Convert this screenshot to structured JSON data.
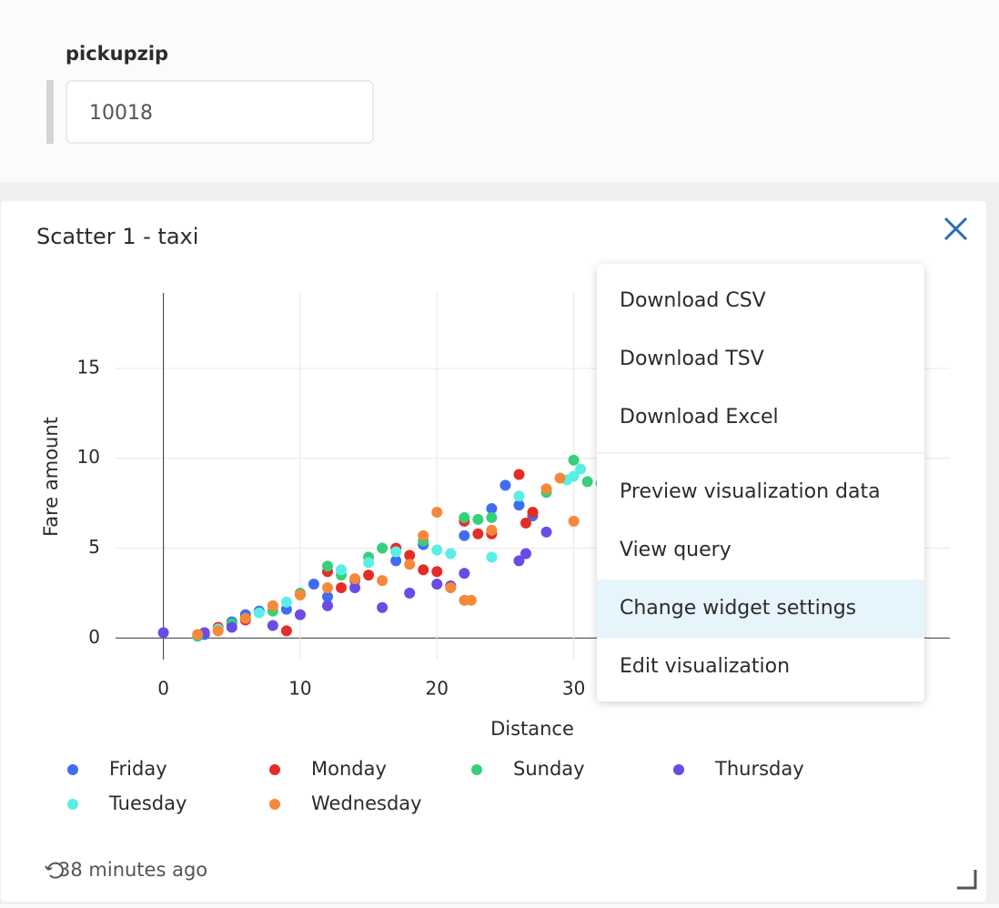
{
  "filter": {
    "label": "pickupzip",
    "value": "10018"
  },
  "widget": {
    "title": "Scatter 1 - taxi",
    "footer": "38 minutes ago"
  },
  "menu": {
    "items": [
      "Download CSV",
      "Download TSV",
      "Download Excel",
      "Preview visualization data",
      "View query",
      "Change widget settings",
      "Edit visualization"
    ],
    "highlighted_index": 5
  },
  "chart_data": {
    "type": "scatter",
    "x_label": "Distance",
    "y_label": "Fare amount",
    "xlim": [
      -3.5,
      57.5
    ],
    "ylim": [
      -1.2,
      19.2
    ],
    "xticks": [
      0,
      10,
      20,
      30
    ],
    "yticks": [
      0,
      5,
      10,
      15
    ],
    "grid": true,
    "series": [
      {
        "name": "Friday",
        "color": "#3f6df2",
        "x": [
          3,
          5,
          6,
          7,
          9,
          11,
          12,
          14,
          17,
          19,
          22,
          24,
          25,
          26,
          27
        ],
        "values": [
          0.2,
          0.9,
          1.3,
          1.5,
          1.6,
          3.0,
          2.3,
          3.2,
          4.3,
          5.2,
          5.7,
          7.2,
          8.5,
          7.4,
          6.8
        ]
      },
      {
        "name": "Monday",
        "color": "#e52d27",
        "x": [
          4,
          6,
          9,
          12,
          13,
          15,
          17,
          18,
          19,
          20,
          22,
          23,
          24,
          26,
          27,
          26.5
        ],
        "values": [
          0.6,
          1.0,
          0.4,
          3.7,
          2.8,
          3.5,
          5.0,
          4.6,
          3.8,
          3.7,
          6.5,
          5.8,
          5.8,
          9.1,
          7.0,
          6.4
        ]
      },
      {
        "name": "Sunday",
        "color": "#36d07a",
        "x": [
          2.5,
          5,
          8,
          10,
          12,
          13,
          15,
          16,
          19,
          22,
          23,
          24,
          28,
          30,
          31,
          32
        ],
        "values": [
          0.1,
          0.8,
          1.5,
          2.5,
          4.0,
          3.5,
          4.5,
          5.0,
          5.4,
          6.7,
          6.6,
          6.7,
          8.1,
          9.9,
          8.7,
          8.6
        ]
      },
      {
        "name": "Thursday",
        "color": "#6a4be6",
        "x": [
          0,
          3,
          5,
          8,
          10,
          12,
          14,
          16,
          18,
          20,
          21,
          22,
          26,
          26.5,
          28
        ],
        "values": [
          0.3,
          0.3,
          0.6,
          0.7,
          1.3,
          1.8,
          2.8,
          1.7,
          2.5,
          3.0,
          2.9,
          3.6,
          4.3,
          4.7,
          5.9
        ]
      },
      {
        "name": "Tuesday",
        "color": "#5aefe6",
        "x": [
          4,
          7,
          9,
          13,
          15,
          17,
          20,
          21,
          24,
          26,
          30,
          29.5,
          30.5
        ],
        "values": [
          0.5,
          1.4,
          2.0,
          3.8,
          4.2,
          4.8,
          4.9,
          4.7,
          4.5,
          7.9,
          9.0,
          8.8,
          9.4
        ]
      },
      {
        "name": "Wednesday",
        "color": "#f5883a",
        "x": [
          2.5,
          4,
          6,
          8,
          10,
          12,
          14,
          16,
          18,
          19,
          20,
          21,
          22,
          22.5,
          24,
          28,
          29,
          30
        ],
        "values": [
          0.2,
          0.4,
          1.1,
          1.8,
          2.4,
          2.8,
          3.3,
          3.2,
          4.1,
          5.7,
          7.0,
          2.8,
          2.1,
          2.1,
          6.0,
          8.3,
          8.9,
          6.5
        ]
      }
    ]
  }
}
